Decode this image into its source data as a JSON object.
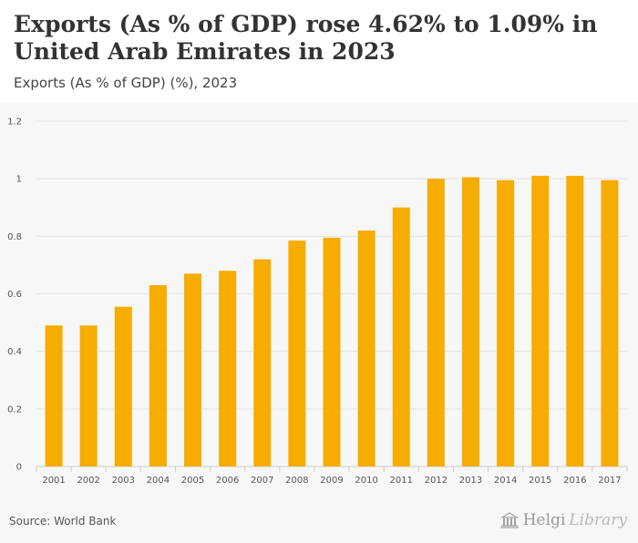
{
  "header": {
    "title": "Exports (As % of GDP) rose 4.62% to 1.09% in United Arab Emirates in 2023",
    "subtitle": "Exports (As % of GDP) (%), 2023"
  },
  "footer": {
    "source": "Source: World Bank",
    "logo_part1": "Helgi",
    "logo_part2": "Library"
  },
  "colors": {
    "bar": "#f7ac00",
    "grid": "#e3e3e3",
    "panel": "#f7f7f7"
  },
  "chart_data": {
    "type": "bar",
    "title": "Exports (As % of GDP) rose 4.62% to 1.09% in United Arab Emirates in 2023",
    "subtitle": "Exports (As % of GDP) (%), 2023",
    "xlabel": "",
    "ylabel": "",
    "categories": [
      "2001",
      "2002",
      "2003",
      "2004",
      "2005",
      "2006",
      "2007",
      "2008",
      "2009",
      "2010",
      "2011",
      "2012",
      "2013",
      "2014",
      "2015",
      "2016",
      "2017"
    ],
    "values": [
      0.49,
      0.49,
      0.555,
      0.63,
      0.67,
      0.68,
      0.72,
      0.785,
      0.795,
      0.82,
      0.9,
      1.0,
      1.005,
      0.995,
      1.01,
      1.01,
      0.995
    ],
    "ylim": [
      0,
      1.2
    ],
    "yticks": [
      0,
      0.2,
      0.4,
      0.6,
      0.8,
      1,
      1.2
    ],
    "ytick_labels": [
      "0",
      "0.2",
      "0.4",
      "0.6",
      "0.8",
      "1",
      "1.2"
    ],
    "grid": true,
    "legend": "none"
  }
}
